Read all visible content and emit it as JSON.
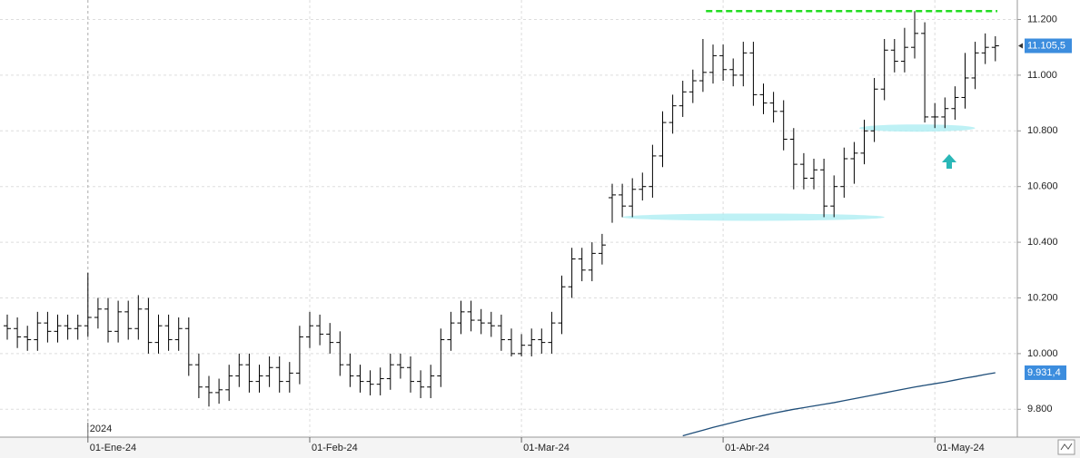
{
  "chart_data": {
    "type": "ohlc",
    "year_label": "2024",
    "categories": [
      null,
      null,
      null,
      null,
      null,
      null,
      null,
      null,
      "01-Ene-24",
      null,
      null,
      null,
      null,
      null,
      null,
      null,
      null,
      null,
      null,
      null,
      null,
      null,
      null,
      null,
      null,
      null,
      null,
      null,
      null,
      null,
      "01-Feb-24",
      null,
      null,
      null,
      null,
      null,
      null,
      null,
      null,
      null,
      null,
      null,
      null,
      null,
      null,
      null,
      null,
      null,
      null,
      null,
      null,
      "01-Mar-24",
      null,
      null,
      null,
      null,
      null,
      null,
      null,
      null,
      null,
      null,
      null,
      null,
      null,
      null,
      null,
      null,
      null,
      null,
      null,
      "01-Abr-24",
      null,
      null,
      null,
      null,
      null,
      null,
      null,
      null,
      null,
      null,
      null,
      null,
      null,
      null,
      null,
      null,
      null,
      null,
      null,
      null,
      "01-May-24",
      null,
      null,
      null,
      null,
      null,
      null
    ],
    "open": [
      10100,
      10090,
      10060,
      10050,
      10110,
      10080,
      10100,
      10090,
      10100,
      10130,
      10160,
      10080,
      10150,
      10090,
      10160,
      10040,
      10100,
      10050,
      10090,
      9960,
      9880,
      9860,
      9870,
      9920,
      9960,
      9900,
      9920,
      9950,
      9900,
      9930,
      10060,
      10100,
      10070,
      10040,
      9960,
      9920,
      9900,
      9890,
      9910,
      9960,
      9950,
      9900,
      9880,
      9920,
      10050,
      10110,
      10150,
      10120,
      10110,
      10100,
      10050,
      10000,
      10030,
      10050,
      10040,
      10110,
      10240,
      10340,
      10300,
      10360,
      10560,
      10570,
      10530,
      10590,
      10600,
      10710,
      10830,
      10890,
      10940,
      10980,
      11010,
      11070,
      11020,
      11000,
      11080,
      10930,
      10900,
      10870,
      10770,
      10680,
      10630,
      10660,
      10530,
      10600,
      10700,
      10720,
      10800,
      10950,
      11090,
      11050,
      11100,
      11150,
      10850,
      10850,
      10880,
      10920,
      10990,
      11080,
      11100
    ],
    "high": [
      10140,
      10130,
      10100,
      10150,
      10150,
      10140,
      10140,
      10140,
      10290,
      10200,
      10200,
      10190,
      10190,
      10210,
      10200,
      10140,
      10140,
      10130,
      10130,
      10000,
      9920,
      9910,
      9960,
      10000,
      10000,
      9960,
      9990,
      9990,
      9970,
      10100,
      10150,
      10140,
      10110,
      10080,
      10000,
      9960,
      9940,
      9950,
      10000,
      10000,
      9990,
      9940,
      9960,
      10090,
      10150,
      10190,
      10190,
      10160,
      10150,
      10140,
      10090,
      10070,
      10090,
      10090,
      10150,
      10280,
      10380,
      10380,
      10400,
      10430,
      10610,
      10610,
      10630,
      10650,
      10750,
      10870,
      10930,
      10980,
      11020,
      11130,
      11110,
      11110,
      11060,
      11120,
      11120,
      10970,
      10940,
      10910,
      10810,
      10720,
      10700,
      10700,
      10640,
      10740,
      10760,
      10840,
      10990,
      11130,
      11130,
      11170,
      11230,
      11190,
      10900,
      10920,
      10960,
      11080,
      11120,
      11150,
      11140
    ],
    "low": [
      10050,
      10020,
      10010,
      10010,
      10040,
      10040,
      10050,
      10050,
      10060,
      10090,
      10040,
      10040,
      10050,
      10050,
      10000,
      10000,
      10010,
      10010,
      9920,
      9840,
      9810,
      9820,
      9830,
      9880,
      9860,
      9860,
      9880,
      9860,
      9860,
      9890,
      10020,
      10030,
      10000,
      9920,
      9880,
      9860,
      9850,
      9850,
      9870,
      9910,
      9860,
      9840,
      9840,
      9880,
      10010,
      10070,
      10080,
      10070,
      10060,
      10010,
      9990,
      9990,
      9990,
      10000,
      10000,
      10070,
      10200,
      10260,
      10260,
      10320,
      10470,
      10490,
      10490,
      10550,
      10560,
      10670,
      10790,
      10850,
      10900,
      10940,
      10970,
      10980,
      10960,
      10960,
      10890,
      10860,
      10830,
      10730,
      10590,
      10590,
      10590,
      10490,
      10490,
      10560,
      10610,
      10680,
      10760,
      10910,
      11010,
      11010,
      11060,
      10830,
      10810,
      10810,
      10840,
      10880,
      10950,
      11040,
      11050
    ],
    "close": [
      10090,
      10060,
      10050,
      10110,
      10080,
      10100,
      10090,
      10100,
      10130,
      10160,
      10080,
      10150,
      10090,
      10160,
      10040,
      10100,
      10050,
      10090,
      9960,
      9880,
      9860,
      9870,
      9920,
      9960,
      9900,
      9920,
      9950,
      9900,
      9930,
      10060,
      10100,
      10070,
      10040,
      9960,
      9920,
      9900,
      9890,
      9910,
      9960,
      9950,
      9900,
      9880,
      9920,
      10050,
      10110,
      10150,
      10120,
      10110,
      10100,
      10050,
      10000,
      10030,
      10050,
      10040,
      10110,
      10240,
      10340,
      10300,
      10360,
      10390,
      10570,
      10530,
      10590,
      10600,
      10710,
      10830,
      10890,
      10940,
      10980,
      11010,
      11070,
      11020,
      11000,
      11080,
      10930,
      10900,
      10870,
      10770,
      10680,
      10630,
      10660,
      10530,
      10600,
      10700,
      10720,
      10800,
      10950,
      11090,
      11050,
      11100,
      11150,
      10850,
      10850,
      10880,
      10920,
      10990,
      11080,
      11100,
      11105.5
    ],
    "last_close_label": "11.105,5",
    "bar_color": "#000000",
    "series": [
      {
        "color": "#1f4e79",
        "last_label": "9.931,4",
        "values": [
          null,
          null,
          null,
          null,
          null,
          null,
          null,
          null,
          null,
          null,
          null,
          null,
          null,
          null,
          null,
          null,
          null,
          null,
          null,
          null,
          null,
          null,
          null,
          null,
          null,
          null,
          null,
          null,
          null,
          null,
          null,
          null,
          null,
          null,
          null,
          null,
          null,
          null,
          null,
          null,
          null,
          null,
          null,
          null,
          null,
          null,
          null,
          null,
          null,
          null,
          null,
          null,
          null,
          null,
          null,
          null,
          null,
          null,
          null,
          null,
          null,
          null,
          null,
          null,
          null,
          null,
          null,
          9705,
          9715,
          9725,
          9735,
          9744,
          9753,
          9762,
          9770,
          9778,
          9786,
          9793,
          9800,
          9806,
          9812,
          9818,
          9824,
          9831,
          9838,
          9845,
          9852,
          9859,
          9866,
          9873,
          9880,
          9886,
          9892,
          9898,
          9905,
          9912,
          9918,
          9925,
          9931.4
        ]
      }
    ],
    "resistance": 11230,
    "supports": [
      10490,
      10810
    ],
    "ylim": [
      9700,
      11270
    ],
    "yticks": [
      {
        "value": 9800,
        "label": "9.800"
      },
      {
        "value": 10000,
        "label": "10.000"
      },
      {
        "value": 10200,
        "label": "10.200"
      },
      {
        "value": 10400,
        "label": "10.400"
      },
      {
        "value": 10600,
        "label": "10.600"
      },
      {
        "value": 10800,
        "label": "10.800"
      },
      {
        "value": 11000,
        "label": "11.000"
      },
      {
        "value": 11200,
        "label": "11.200"
      }
    ],
    "grid": true
  }
}
